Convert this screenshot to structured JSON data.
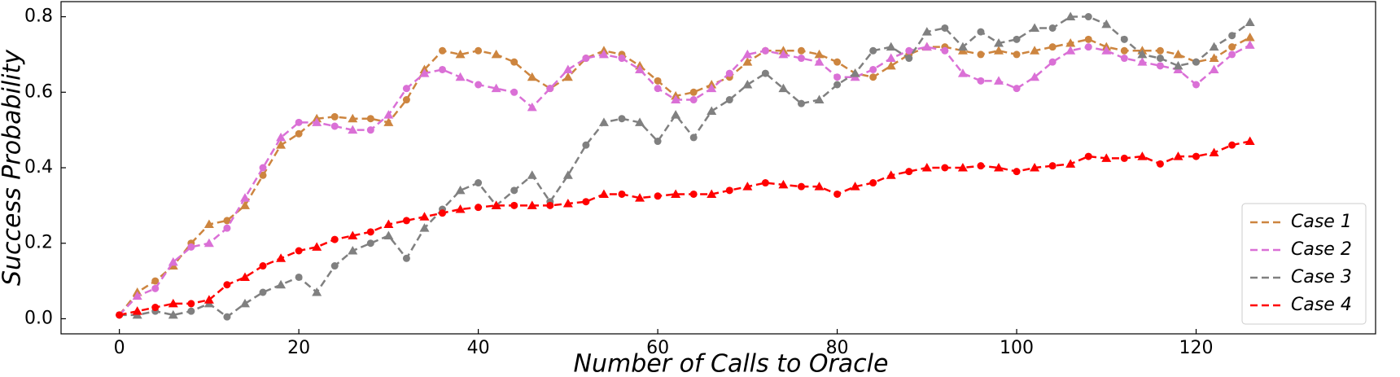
{
  "chart_data": {
    "type": "line",
    "xlabel": "Number of Calls to Oracle",
    "ylabel": "Success Probability",
    "x": [
      0,
      2,
      4,
      6,
      8,
      10,
      12,
      14,
      16,
      18,
      20,
      22,
      24,
      26,
      28,
      30,
      32,
      34,
      36,
      38,
      40,
      42,
      44,
      46,
      48,
      50,
      52,
      54,
      56,
      58,
      60,
      62,
      64,
      66,
      68,
      70,
      72,
      74,
      76,
      78,
      80,
      82,
      84,
      86,
      88,
      90,
      92,
      94,
      96,
      98,
      100,
      102,
      104,
      106,
      108,
      110,
      112,
      114,
      116,
      118,
      120,
      122,
      124,
      126
    ],
    "series": [
      {
        "name": "Case 1",
        "color": "#cd853f",
        "values": [
          0.01,
          0.07,
          0.1,
          0.14,
          0.2,
          0.25,
          0.26,
          0.3,
          0.38,
          0.46,
          0.49,
          0.53,
          0.535,
          0.53,
          0.53,
          0.52,
          0.58,
          0.66,
          0.71,
          0.7,
          0.71,
          0.7,
          0.68,
          0.64,
          0.61,
          0.64,
          0.69,
          0.71,
          0.7,
          0.67,
          0.63,
          0.59,
          0.6,
          0.62,
          0.64,
          0.68,
          0.71,
          0.71,
          0.71,
          0.7,
          0.68,
          0.65,
          0.64,
          0.67,
          0.7,
          0.72,
          0.72,
          0.71,
          0.7,
          0.71,
          0.7,
          0.71,
          0.72,
          0.73,
          0.74,
          0.72,
          0.71,
          0.71,
          0.71,
          0.7,
          0.68,
          0.69,
          0.72,
          0.745
        ]
      },
      {
        "name": "Case 2",
        "color": "#da70d6",
        "values": [
          0.01,
          0.06,
          0.08,
          0.15,
          0.19,
          0.2,
          0.24,
          0.32,
          0.4,
          0.48,
          0.52,
          0.52,
          0.51,
          0.5,
          0.5,
          0.54,
          0.61,
          0.65,
          0.66,
          0.64,
          0.62,
          0.61,
          0.6,
          0.56,
          0.61,
          0.66,
          0.69,
          0.7,
          0.69,
          0.66,
          0.61,
          0.58,
          0.58,
          0.61,
          0.65,
          0.7,
          0.71,
          0.7,
          0.69,
          0.68,
          0.64,
          0.64,
          0.66,
          0.69,
          0.71,
          0.72,
          0.71,
          0.65,
          0.63,
          0.63,
          0.61,
          0.64,
          0.68,
          0.71,
          0.72,
          0.71,
          0.69,
          0.68,
          0.67,
          0.66,
          0.62,
          0.66,
          0.7,
          0.725
        ]
      },
      {
        "name": "Case 3",
        "color": "#808080",
        "values": [
          0.01,
          0.01,
          0.02,
          0.01,
          0.02,
          0.04,
          0.005,
          0.04,
          0.07,
          0.09,
          0.11,
          0.07,
          0.14,
          0.18,
          0.2,
          0.22,
          0.16,
          0.24,
          0.29,
          0.34,
          0.36,
          0.3,
          0.34,
          0.38,
          0.31,
          0.38,
          0.46,
          0.52,
          0.53,
          0.52,
          0.47,
          0.54,
          0.48,
          0.55,
          0.58,
          0.62,
          0.65,
          0.61,
          0.57,
          0.58,
          0.62,
          0.65,
          0.71,
          0.72,
          0.69,
          0.76,
          0.77,
          0.72,
          0.76,
          0.73,
          0.74,
          0.77,
          0.77,
          0.8,
          0.8,
          0.78,
          0.74,
          0.7,
          0.69,
          0.67,
          0.68,
          0.72,
          0.75,
          0.785
        ]
      },
      {
        "name": "Case 4",
        "color": "#ff0000",
        "values": [
          0.01,
          0.02,
          0.03,
          0.04,
          0.04,
          0.05,
          0.09,
          0.11,
          0.14,
          0.16,
          0.18,
          0.19,
          0.21,
          0.22,
          0.23,
          0.25,
          0.26,
          0.27,
          0.28,
          0.29,
          0.295,
          0.3,
          0.3,
          0.3,
          0.3,
          0.305,
          0.31,
          0.33,
          0.33,
          0.32,
          0.325,
          0.33,
          0.33,
          0.33,
          0.34,
          0.35,
          0.36,
          0.355,
          0.35,
          0.35,
          0.33,
          0.35,
          0.36,
          0.38,
          0.39,
          0.4,
          0.4,
          0.4,
          0.405,
          0.4,
          0.39,
          0.4,
          0.405,
          0.41,
          0.43,
          0.425,
          0.425,
          0.43,
          0.41,
          0.43,
          0.43,
          0.44,
          0.46,
          0.47
        ]
      }
    ],
    "xlim": [
      -6.5,
      140
    ],
    "ylim": [
      -0.04,
      0.84
    ],
    "xticks": [
      0,
      20,
      40,
      60,
      80,
      100,
      120
    ],
    "yticks": [
      {
        "value": 0,
        "label": "0.0"
      },
      0.2,
      0.4,
      0.6,
      0.8
    ],
    "legend": "lower right"
  }
}
